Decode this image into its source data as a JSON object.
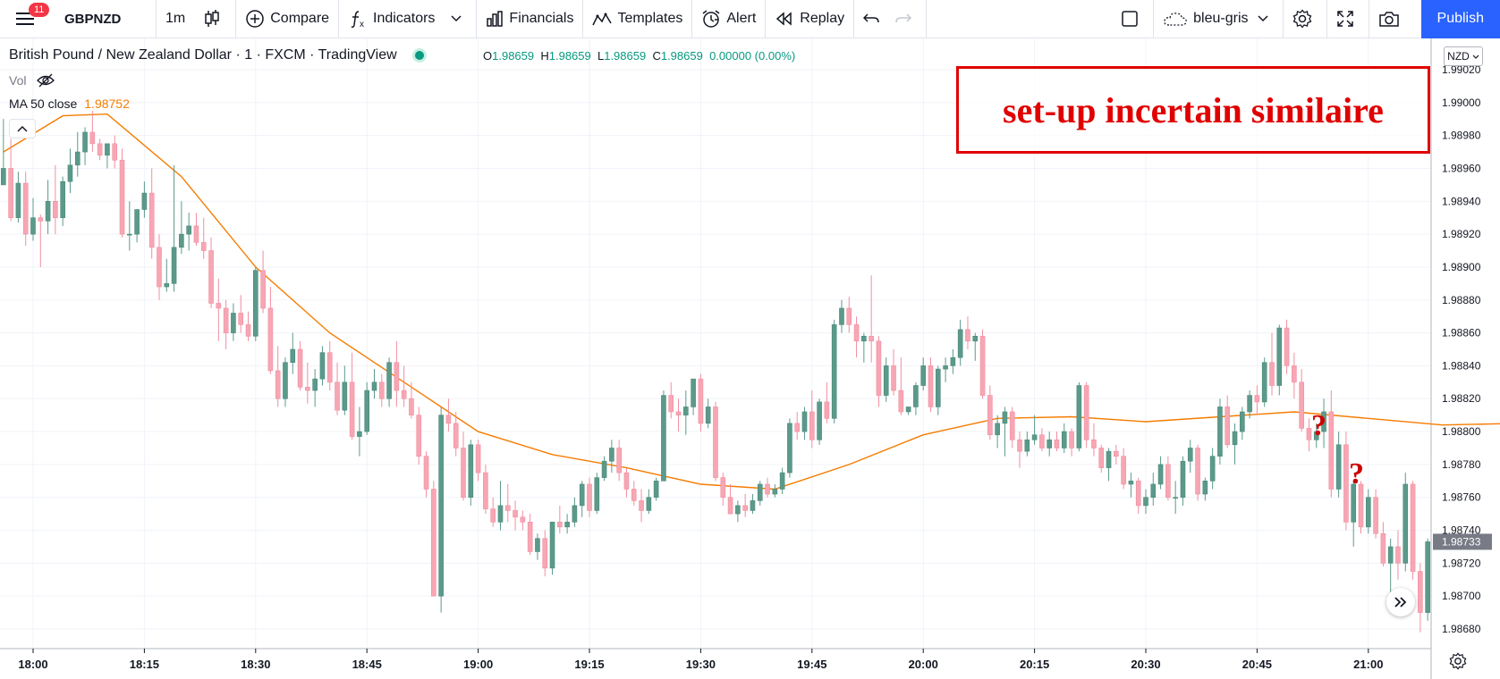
{
  "toolbar": {
    "notification_count": "11",
    "symbol": "GBPNZD",
    "interval": "1m",
    "compare_label": "Compare",
    "indicators_label": "Indicators",
    "financials_label": "Financials",
    "templates_label": "Templates",
    "alert_label": "Alert",
    "replay_label": "Replay",
    "layout_name": "bleu-gris",
    "publish_label": "Publish"
  },
  "legend": {
    "title": "British Pound / New Zealand Dollar · 1 · FXCM · TradingView",
    "o_label": "O",
    "o": "1.98659",
    "h_label": "H",
    "h": "1.98659",
    "l_label": "L",
    "l": "1.98659",
    "c_label": "C",
    "c": "1.98659",
    "change": "0.00000 (0.00%)",
    "vol_label": "Vol",
    "ma_label": "MA 50 close",
    "ma_value": "1.98752"
  },
  "annotation": {
    "text": "set-up incertain similaire",
    "question_mark": "?"
  },
  "price_axis": {
    "currency": "NZD",
    "current_price": "1.98733",
    "ticks": [
      "1.99020",
      "1.99000",
      "1.98980",
      "1.98960",
      "1.98940",
      "1.98920",
      "1.98900",
      "1.98880",
      "1.98860",
      "1.98840",
      "1.98820",
      "1.98800",
      "1.98780",
      "1.98760",
      "1.98740",
      "1.98720",
      "1.98700",
      "1.98680"
    ]
  },
  "colors": {
    "up": "#5b9a8b",
    "down": "#f7a6b4",
    "ma": "#f57c00",
    "annotation": "#e00000",
    "accent": "#2962ff"
  },
  "chart_data": {
    "type": "candlestick",
    "symbol": "GBPNZD",
    "interval": "1m",
    "x_ticks": [
      "18:00",
      "18:15",
      "18:30",
      "18:45",
      "19:00",
      "19:15",
      "19:30",
      "19:45",
      "20:00",
      "20:15",
      "20:30",
      "20:45",
      "21:00"
    ],
    "ylim": [
      1.9867,
      1.9903
    ],
    "grid": true,
    "ma_series": {
      "name": "MA 50 close",
      "points": [
        [
          0,
          1.9897
        ],
        [
          8,
          1.98992
        ],
        [
          14,
          1.98993
        ],
        [
          24,
          1.98955
        ],
        [
          34,
          1.989
        ],
        [
          44,
          1.9886
        ],
        [
          54,
          1.9883
        ],
        [
          64,
          1.988
        ],
        [
          74,
          1.98786
        ],
        [
          84,
          1.98778
        ],
        [
          94,
          1.98768
        ],
        [
          104,
          1.98765
        ],
        [
          114,
          1.9878
        ],
        [
          124,
          1.98798
        ],
        [
          134,
          1.98808
        ],
        [
          144,
          1.98809
        ],
        [
          154,
          1.98806
        ],
        [
          164,
          1.98809
        ],
        [
          174,
          1.98812
        ],
        [
          184,
          1.98808
        ],
        [
          194,
          1.98804
        ],
        [
          204,
          1.98805
        ],
        [
          214,
          1.9879
        ],
        [
          222,
          1.98778
        ]
      ]
    },
    "candles": [
      [
        1.9895,
        1.9899,
        1.9895,
        1.9896
      ],
      [
        1.9896,
        1.98978,
        1.98928,
        1.9893
      ],
      [
        1.9893,
        1.98958,
        1.98927,
        1.98951
      ],
      [
        1.98951,
        1.98958,
        1.98913,
        1.9892
      ],
      [
        1.9892,
        1.98942,
        1.98916,
        1.9893
      ],
      [
        1.9893,
        1.98932,
        1.989,
        1.98928
      ],
      [
        1.98928,
        1.98953,
        1.9892,
        1.9894
      ],
      [
        1.9894,
        1.98962,
        1.9892,
        1.9893
      ],
      [
        1.9893,
        1.98955,
        1.98925,
        1.98952
      ],
      [
        1.98952,
        1.98972,
        1.98945,
        1.98962
      ],
      [
        1.98962,
        1.98982,
        1.98955,
        1.9897
      ],
      [
        1.9897,
        1.98985,
        1.98962,
        1.98982
      ],
      [
        1.98982,
        1.98995,
        1.9897,
        1.98975
      ],
      [
        1.98975,
        1.98978,
        1.98965,
        1.98968
      ],
      [
        1.98968,
        1.98975,
        1.9896,
        1.98975
      ],
      [
        1.98975,
        1.9898,
        1.9896,
        1.98965
      ],
      [
        1.98965,
        1.98972,
        1.98918,
        1.9892
      ],
      [
        1.9892,
        1.9894,
        1.9891,
        1.9892
      ],
      [
        1.9892,
        1.98935,
        1.98915,
        1.98935
      ],
      [
        1.98935,
        1.98952,
        1.9893,
        1.98945
      ],
      [
        1.98945,
        1.9896,
        1.98905,
        1.98912
      ],
      [
        1.98912,
        1.9892,
        1.9888,
        1.98888
      ],
      [
        1.98888,
        1.98905,
        1.98885,
        1.9889
      ],
      [
        1.9889,
        1.98962,
        1.98885,
        1.98912
      ],
      [
        1.98912,
        1.9894,
        1.98908,
        1.9892
      ],
      [
        1.9892,
        1.98933,
        1.9891,
        1.98925
      ],
      [
        1.98925,
        1.98933,
        1.98913,
        1.98915
      ],
      [
        1.98915,
        1.9893,
        1.98905,
        1.9891
      ],
      [
        1.9891,
        1.98918,
        1.98875,
        1.98878
      ],
      [
        1.98878,
        1.98893,
        1.98855,
        1.98875
      ],
      [
        1.98875,
        1.9888,
        1.9885,
        1.9886
      ],
      [
        1.9886,
        1.98878,
        1.98855,
        1.98872
      ],
      [
        1.98872,
        1.98883,
        1.9886,
        1.98865
      ],
      [
        1.98865,
        1.98873,
        1.98855,
        1.98858
      ],
      [
        1.98858,
        1.989,
        1.98855,
        1.98898
      ],
      [
        1.98898,
        1.9891,
        1.98872,
        1.98875
      ],
      [
        1.98875,
        1.98888,
        1.98835,
        1.98837
      ],
      [
        1.98837,
        1.98852,
        1.98815,
        1.9882
      ],
      [
        1.9882,
        1.98845,
        1.98815,
        1.98842
      ],
      [
        1.98842,
        1.9886,
        1.98835,
        1.9885
      ],
      [
        1.9885,
        1.98855,
        1.98825,
        1.98827
      ],
      [
        1.98827,
        1.98842,
        1.98817,
        1.98825
      ],
      [
        1.98825,
        1.98838,
        1.98815,
        1.98832
      ],
      [
        1.98832,
        1.98852,
        1.98828,
        1.98848
      ],
      [
        1.98848,
        1.98855,
        1.98825,
        1.9883
      ],
      [
        1.9883,
        1.98842,
        1.9881,
        1.98813
      ],
      [
        1.98813,
        1.9884,
        1.9881,
        1.9883
      ],
      [
        1.9883,
        1.98848,
        1.98795,
        1.98797
      ],
      [
        1.98797,
        1.98815,
        1.98785,
        1.988
      ],
      [
        1.988,
        1.9883,
        1.98798,
        1.98825
      ],
      [
        1.98825,
        1.98838,
        1.9882,
        1.9883
      ],
      [
        1.9883,
        1.98835,
        1.98815,
        1.9882
      ],
      [
        1.9882,
        1.98845,
        1.98815,
        1.98842
      ],
      [
        1.98842,
        1.98855,
        1.98815,
        1.98825
      ],
      [
        1.98825,
        1.9884,
        1.98815,
        1.9882
      ],
      [
        1.9882,
        1.9883,
        1.98808,
        1.9881
      ],
      [
        1.9881,
        1.98815,
        1.9878,
        1.98785
      ],
      [
        1.98785,
        1.98788,
        1.9876,
        1.98765
      ],
      [
        1.98765,
        1.9877,
        1.987,
        1.987
      ],
      [
        1.987,
        1.98815,
        1.9869,
        1.9881
      ],
      [
        1.9881,
        1.9882,
        1.988,
        1.98805
      ],
      [
        1.98805,
        1.98812,
        1.98785,
        1.9879
      ],
      [
        1.9879,
        1.988,
        1.98758,
        1.9876
      ],
      [
        1.9876,
        1.98795,
        1.98755,
        1.98792
      ],
      [
        1.98792,
        1.98795,
        1.9877,
        1.98775
      ],
      [
        1.98775,
        1.9878,
        1.9875,
        1.98753
      ],
      [
        1.98753,
        1.9876,
        1.98742,
        1.98745
      ],
      [
        1.98745,
        1.9877,
        1.9874,
        1.98755
      ],
      [
        1.98755,
        1.98768,
        1.98745,
        1.98752
      ],
      [
        1.98752,
        1.98758,
        1.9874,
        1.98748
      ],
      [
        1.98748,
        1.98752,
        1.9874,
        1.98745
      ],
      [
        1.98745,
        1.9875,
        1.98725,
        1.98727
      ],
      [
        1.98727,
        1.98738,
        1.98722,
        1.98735
      ],
      [
        1.98735,
        1.9874,
        1.98712,
        1.98717
      ],
      [
        1.98717,
        1.98745,
        1.98713,
        1.98745
      ],
      [
        1.98745,
        1.98755,
        1.98738,
        1.98742
      ],
      [
        1.98742,
        1.9875,
        1.98738,
        1.98745
      ],
      [
        1.98745,
        1.9876,
        1.98742,
        1.98755
      ],
      [
        1.98755,
        1.9877,
        1.98748,
        1.98768
      ],
      [
        1.98768,
        1.98772,
        1.98748,
        1.98752
      ],
      [
        1.98752,
        1.98775,
        1.9875,
        1.98772
      ],
      [
        1.98772,
        1.98785,
        1.9877,
        1.98782
      ],
      [
        1.98782,
        1.98795,
        1.98775,
        1.9879
      ],
      [
        1.9879,
        1.98795,
        1.9877,
        1.98775
      ],
      [
        1.98775,
        1.98778,
        1.9876,
        1.98765
      ],
      [
        1.98765,
        1.9877,
        1.98755,
        1.98758
      ],
      [
        1.98758,
        1.98765,
        1.98745,
        1.98752
      ],
      [
        1.98752,
        1.98765,
        1.9875,
        1.9876
      ],
      [
        1.9876,
        1.98772,
        1.98758,
        1.9877
      ],
      [
        1.9877,
        1.98825,
        1.9877,
        1.98822
      ],
      [
        1.98822,
        1.9883,
        1.98808,
        1.98812
      ],
      [
        1.98812,
        1.9882,
        1.988,
        1.9881
      ],
      [
        1.9881,
        1.98825,
        1.98798,
        1.98815
      ],
      [
        1.98815,
        1.98832,
        1.9881,
        1.98832
      ],
      [
        1.98832,
        1.98835,
        1.988,
        1.98805
      ],
      [
        1.98805,
        1.9882,
        1.98802,
        1.98815
      ],
      [
        1.98815,
        1.98818,
        1.9877,
        1.98772
      ],
      [
        1.98772,
        1.98775,
        1.98755,
        1.9876
      ],
      [
        1.9876,
        1.98768,
        1.9875,
        1.9875
      ],
      [
        1.9875,
        1.98758,
        1.98745,
        1.98755
      ],
      [
        1.98755,
        1.98762,
        1.98748,
        1.98752
      ],
      [
        1.98752,
        1.98762,
        1.9875,
        1.98758
      ],
      [
        1.98758,
        1.9877,
        1.98755,
        1.98768
      ],
      [
        1.98768,
        1.98772,
        1.9876,
        1.98762
      ],
      [
        1.98762,
        1.98768,
        1.9876,
        1.98765
      ],
      [
        1.98765,
        1.98778,
        1.98762,
        1.98775
      ],
      [
        1.98775,
        1.98808,
        1.98772,
        1.98805
      ],
      [
        1.98805,
        1.98812,
        1.98795,
        1.988
      ],
      [
        1.988,
        1.98815,
        1.98795,
        1.98812
      ],
      [
        1.98812,
        1.98825,
        1.9879,
        1.98795
      ],
      [
        1.98795,
        1.9882,
        1.98792,
        1.98818
      ],
      [
        1.98818,
        1.9883,
        1.98805,
        1.98808
      ],
      [
        1.98808,
        1.98868,
        1.98805,
        1.98865
      ],
      [
        1.98865,
        1.9888,
        1.9886,
        1.98875
      ],
      [
        1.98875,
        1.98882,
        1.9886,
        1.98865
      ],
      [
        1.98865,
        1.9887,
        1.98845,
        1.98855
      ],
      [
        1.98855,
        1.9886,
        1.98842,
        1.98858
      ],
      [
        1.98858,
        1.98895,
        1.98842,
        1.98855
      ],
      [
        1.98855,
        1.98858,
        1.98815,
        1.98822
      ],
      [
        1.98822,
        1.98845,
        1.98818,
        1.9884
      ],
      [
        1.9884,
        1.9885,
        1.98822,
        1.98825
      ],
      [
        1.98825,
        1.98845,
        1.9881,
        1.98812
      ],
      [
        1.98812,
        1.98815,
        1.9881,
        1.98815
      ],
      [
        1.98815,
        1.9883,
        1.9881,
        1.98828
      ],
      [
        1.98828,
        1.98845,
        1.98825,
        1.9884
      ],
      [
        1.9884,
        1.98845,
        1.98812,
        1.98815
      ],
      [
        1.98815,
        1.9884,
        1.9881,
        1.98838
      ],
      [
        1.98838,
        1.98845,
        1.9883,
        1.9884
      ],
      [
        1.9884,
        1.9885,
        1.98835,
        1.98845
      ],
      [
        1.98845,
        1.98868,
        1.9884,
        1.98862
      ],
      [
        1.98862,
        1.9887,
        1.9885,
        1.98855
      ],
      [
        1.98855,
        1.9886,
        1.98843,
        1.98858
      ],
      [
        1.98858,
        1.98862,
        1.9882,
        1.98822
      ],
      [
        1.98822,
        1.98828,
        1.98795,
        1.98798
      ],
      [
        1.98798,
        1.9881,
        1.9879,
        1.98805
      ],
      [
        1.98805,
        1.98815,
        1.98785,
        1.98812
      ],
      [
        1.98812,
        1.98815,
        1.9879,
        1.98795
      ],
      [
        1.98795,
        1.988,
        1.98778,
        1.98788
      ],
      [
        1.98788,
        1.988,
        1.98785,
        1.98795
      ],
      [
        1.98795,
        1.9881,
        1.98792,
        1.98798
      ],
      [
        1.98798,
        1.98802,
        1.98788,
        1.9879
      ],
      [
        1.9879,
        1.988,
        1.98785,
        1.98795
      ],
      [
        1.98795,
        1.988,
        1.98788,
        1.9879
      ],
      [
        1.9879,
        1.98805,
        1.98787,
        1.988
      ],
      [
        1.988,
        1.98802,
        1.98785,
        1.9879
      ],
      [
        1.9879,
        1.9883,
        1.98788,
        1.98828
      ],
      [
        1.98828,
        1.9883,
        1.9879,
        1.98795
      ],
      [
        1.98795,
        1.98805,
        1.98785,
        1.9879
      ],
      [
        1.9879,
        1.98792,
        1.98775,
        1.98778
      ],
      [
        1.98778,
        1.9879,
        1.9877,
        1.98788
      ],
      [
        1.98788,
        1.98792,
        1.9878,
        1.98785
      ],
      [
        1.98785,
        1.9879,
        1.98765,
        1.98768
      ],
      [
        1.98768,
        1.98775,
        1.9876,
        1.9877
      ],
      [
        1.9877,
        1.98772,
        1.9875,
        1.98755
      ],
      [
        1.98755,
        1.98765,
        1.9875,
        1.9876
      ],
      [
        1.9876,
        1.98775,
        1.98755,
        1.98768
      ],
      [
        1.98768,
        1.98785,
        1.98765,
        1.9878
      ],
      [
        1.9878,
        1.98785,
        1.98758,
        1.9876
      ],
      [
        1.9876,
        1.9877,
        1.9875,
        1.9876
      ],
      [
        1.9876,
        1.98785,
        1.98755,
        1.98782
      ],
      [
        1.98782,
        1.98795,
        1.98775,
        1.9879
      ],
      [
        1.9879,
        1.98792,
        1.98758,
        1.98762
      ],
      [
        1.98762,
        1.98772,
        1.98758,
        1.9877
      ],
      [
        1.9877,
        1.9879,
        1.98765,
        1.98785
      ],
      [
        1.98785,
        1.9882,
        1.9878,
        1.98815
      ],
      [
        1.98815,
        1.98822,
        1.9879,
        1.98792
      ],
      [
        1.98792,
        1.98805,
        1.9878,
        1.988
      ],
      [
        1.988,
        1.98815,
        1.98795,
        1.98812
      ],
      [
        1.98812,
        1.98825,
        1.98808,
        1.98822
      ],
      [
        1.98822,
        1.98828,
        1.9881,
        1.98818
      ],
      [
        1.98818,
        1.98845,
        1.98815,
        1.98842
      ],
      [
        1.98842,
        1.9886,
        1.98822,
        1.98828
      ],
      [
        1.98828,
        1.98865,
        1.98822,
        1.98863
      ],
      [
        1.98863,
        1.98868,
        1.98835,
        1.9884
      ],
      [
        1.9884,
        1.98848,
        1.9882,
        1.9883
      ],
      [
        1.9883,
        1.98838,
        1.988,
        1.98802
      ],
      [
        1.98802,
        1.98808,
        1.98788,
        1.98795
      ],
      [
        1.98795,
        1.98805,
        1.9879,
        1.988
      ],
      [
        1.988,
        1.9882,
        1.9879,
        1.98812
      ],
      [
        1.98812,
        1.98825,
        1.9876,
        1.98765
      ],
      [
        1.98765,
        1.988,
        1.9876,
        1.98792
      ],
      [
        1.98792,
        1.988,
        1.9874,
        1.98745
      ],
      [
        1.98745,
        1.9877,
        1.9873,
        1.98768
      ],
      [
        1.98768,
        1.9877,
        1.98738,
        1.98742
      ],
      [
        1.98742,
        1.98765,
        1.98738,
        1.9876
      ],
      [
        1.9876,
        1.98765,
        1.98735,
        1.98738
      ],
      [
        1.98738,
        1.98745,
        1.98718,
        1.9872
      ],
      [
        1.9872,
        1.98735,
        1.987,
        1.9873
      ],
      [
        1.9873,
        1.9874,
        1.9871,
        1.9872
      ],
      [
        1.9872,
        1.98775,
        1.98715,
        1.98768
      ],
      [
        1.98768,
        1.9877,
        1.9871,
        1.98715
      ],
      [
        1.98715,
        1.9872,
        1.98678,
        1.9869
      ],
      [
        1.9869,
        1.98735,
        1.98685,
        1.98733
      ]
    ]
  }
}
